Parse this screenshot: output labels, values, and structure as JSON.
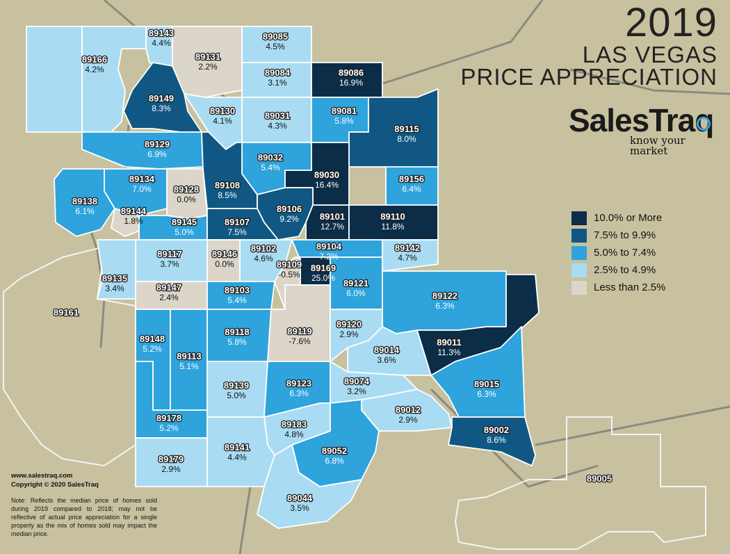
{
  "title": {
    "year": "2019",
    "line1": "LAS VEGAS",
    "line2": "PRICE APPRECIATION"
  },
  "brand": {
    "name": "SalesTraq",
    "tagline": "know your market"
  },
  "legend": {
    "items": [
      {
        "label": "10.0% or More",
        "color": "#0c2d48"
      },
      {
        "label": "7.5% to 9.9%",
        "color": "#105883"
      },
      {
        "label": "5.0% to 7.4%",
        "color": "#2ea3dc"
      },
      {
        "label": "2.5% to 4.9%",
        "color": "#a9dcf3"
      },
      {
        "label": "Less than 2.5%",
        "color": "#dbd5ca"
      }
    ]
  },
  "footer": {
    "url": "www.salestraq.com",
    "copyright": "Copyright © 2020 SalesTraq",
    "note": "Note: Reflects the median price of homes sold during 2019 compared to 2018; may not be reflective of actual price appreciation for a single property as the mix of homes sold may impact the median price."
  },
  "colors": {
    "background": "#c8c19f",
    "outline": "#f4f4f4",
    "road": "#8a8a80"
  },
  "zips": [
    {
      "zip": "89143",
      "pct": "4.4%"
    },
    {
      "zip": "89131",
      "pct": "2.2%"
    },
    {
      "zip": "89085",
      "pct": "4.5%"
    },
    {
      "zip": "89166",
      "pct": "4.2%"
    },
    {
      "zip": "89084",
      "pct": "3.1%"
    },
    {
      "zip": "89086",
      "pct": "16.9%"
    },
    {
      "zip": "89149",
      "pct": "8.3%"
    },
    {
      "zip": "89130",
      "pct": "4.1%"
    },
    {
      "zip": "89031",
      "pct": "4.3%"
    },
    {
      "zip": "89081",
      "pct": "5.8%"
    },
    {
      "zip": "89115",
      "pct": "8.0%"
    },
    {
      "zip": "89129",
      "pct": "6.9%"
    },
    {
      "zip": "89032",
      "pct": "5.4%"
    },
    {
      "zip": "89030",
      "pct": "16.4%"
    },
    {
      "zip": "89134",
      "pct": "7.0%"
    },
    {
      "zip": "89128",
      "pct": "0.0%"
    },
    {
      "zip": "89108",
      "pct": "8.5%"
    },
    {
      "zip": "89156",
      "pct": "6.4%"
    },
    {
      "zip": "89138",
      "pct": "6.1%"
    },
    {
      "zip": "89144",
      "pct": "1.8%"
    },
    {
      "zip": "89106",
      "pct": "9.2%"
    },
    {
      "zip": "89101",
      "pct": "12.7%"
    },
    {
      "zip": "89110",
      "pct": "11.8%"
    },
    {
      "zip": "89145",
      "pct": "5.0%"
    },
    {
      "zip": "89107",
      "pct": "7.5%"
    },
    {
      "zip": "89117",
      "pct": "3.7%"
    },
    {
      "zip": "89146",
      "pct": "0.0%"
    },
    {
      "zip": "89102",
      "pct": "4.6%"
    },
    {
      "zip": "89104",
      "pct": "7.2%"
    },
    {
      "zip": "89142",
      "pct": "4.7%"
    },
    {
      "zip": "89109",
      "pct": "-0.5%"
    },
    {
      "zip": "89169",
      "pct": "25.0%"
    },
    {
      "zip": "89135",
      "pct": "3.4%"
    },
    {
      "zip": "89147",
      "pct": "2.4%"
    },
    {
      "zip": "89103",
      "pct": "5.4%"
    },
    {
      "zip": "89121",
      "pct": "6.0%"
    },
    {
      "zip": "89122",
      "pct": "6.3%"
    },
    {
      "zip": "89161",
      "pct": ""
    },
    {
      "zip": "89148",
      "pct": "5.2%"
    },
    {
      "zip": "89118",
      "pct": "5.8%"
    },
    {
      "zip": "89119",
      "pct": "-7.6%"
    },
    {
      "zip": "89120",
      "pct": "2.9%"
    },
    {
      "zip": "89113",
      "pct": "5.1%"
    },
    {
      "zip": "89014",
      "pct": "3.6%"
    },
    {
      "zip": "89011",
      "pct": "11.3%"
    },
    {
      "zip": "89139",
      "pct": "5.0%"
    },
    {
      "zip": "89123",
      "pct": "6.3%"
    },
    {
      "zip": "89074",
      "pct": "3.2%"
    },
    {
      "zip": "89015",
      "pct": "6.3%"
    },
    {
      "zip": "89178",
      "pct": "5.2%"
    },
    {
      "zip": "89183",
      "pct": "4.8%"
    },
    {
      "zip": "89012",
      "pct": "2.9%"
    },
    {
      "zip": "89002",
      "pct": "8.6%"
    },
    {
      "zip": "89052",
      "pct": "6.8%"
    },
    {
      "zip": "89179",
      "pct": "2.9%"
    },
    {
      "zip": "89141",
      "pct": "4.4%"
    },
    {
      "zip": "89005",
      "pct": ""
    },
    {
      "zip": "89044",
      "pct": "3.5%"
    }
  ]
}
